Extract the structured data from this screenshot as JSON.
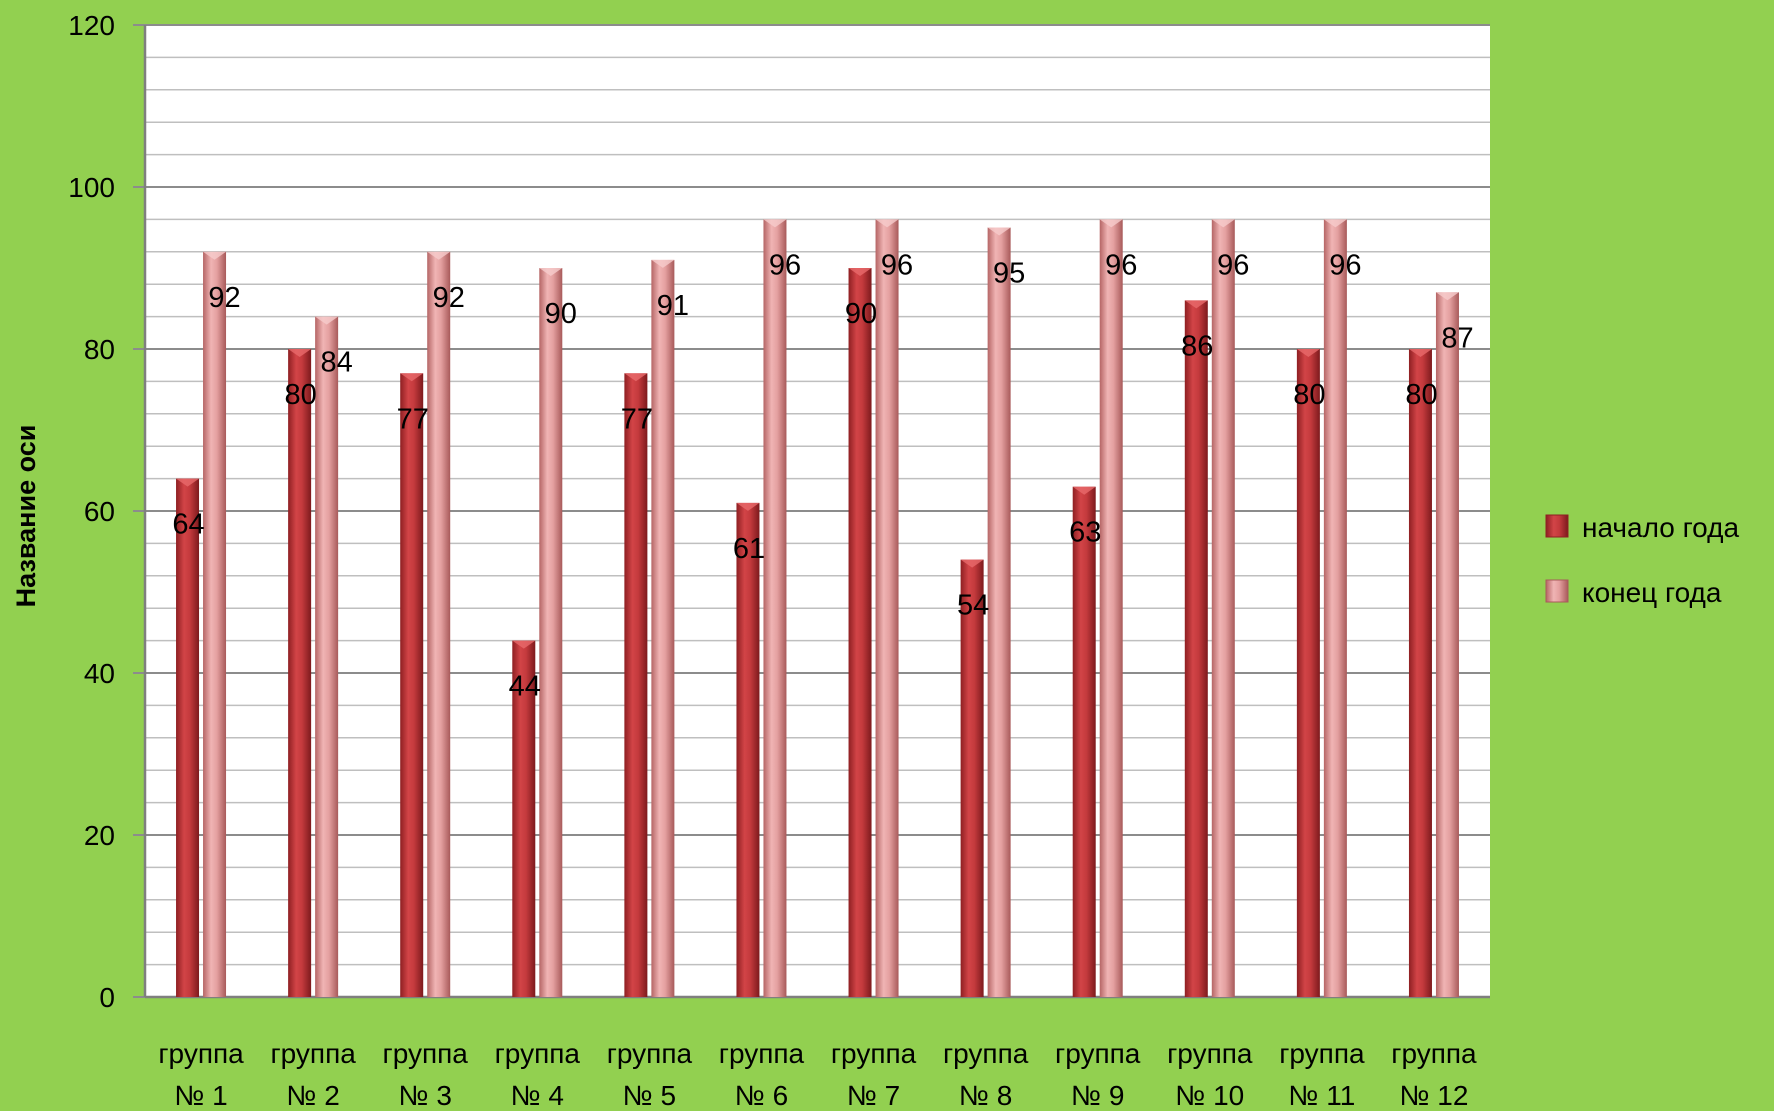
{
  "chart_data": {
    "type": "bar",
    "title": "",
    "xlabel": "",
    "ylabel": "Название оси",
    "ylim": [
      0,
      120
    ],
    "yticks": [
      0,
      20,
      40,
      60,
      80,
      100,
      120
    ],
    "grid": true,
    "legend_position": "right",
    "categories": [
      [
        "группа",
        "№ 1"
      ],
      [
        "группа",
        "№ 2"
      ],
      [
        "группа",
        "№ 3"
      ],
      [
        "группа",
        "№ 4"
      ],
      [
        "группа",
        "№ 5"
      ],
      [
        "группа",
        "№ 6"
      ],
      [
        "группа",
        "№ 7"
      ],
      [
        "группа",
        "№ 8"
      ],
      [
        "группа",
        "№ 9"
      ],
      [
        "группа",
        "№ 10"
      ],
      [
        "группа",
        "№ 11"
      ],
      [
        "группа",
        "№ 12"
      ]
    ],
    "series": [
      {
        "name": "начало года",
        "color": "#c0393b",
        "values": [
          64,
          80,
          77,
          44,
          77,
          61,
          90,
          54,
          63,
          86,
          80,
          80
        ]
      },
      {
        "name": "конец года",
        "color": "#d98a8a",
        "values": [
          92,
          84,
          92,
          90,
          91,
          96,
          96,
          95,
          96,
          96,
          96,
          87
        ]
      }
    ]
  },
  "colors": {
    "background": "#92d050",
    "plot_area": "#ffffff",
    "gridline": "#a6a6a6"
  }
}
